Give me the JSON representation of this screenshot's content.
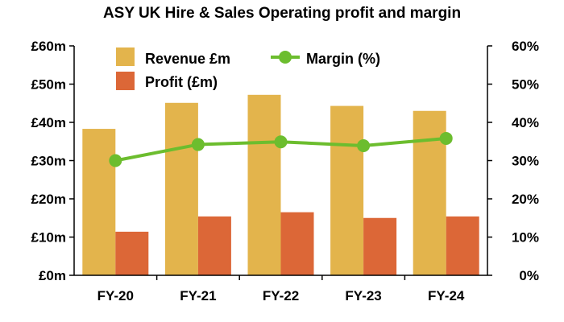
{
  "chart_data": {
    "type": "bar",
    "title": "ASY UK Hire & Sales Operating profit and margin",
    "categories": [
      "FY-20",
      "FY-21",
      "FY-22",
      "FY-23",
      "FY-24"
    ],
    "series": [
      {
        "name": "Revenue £m",
        "kind": "bar",
        "axis": "left",
        "color": "#E3B44C",
        "values": [
          38.3,
          45.1,
          47.2,
          44.3,
          43.0
        ]
      },
      {
        "name": "Profit (£m)",
        "kind": "bar",
        "axis": "left",
        "color": "#DC6737",
        "values": [
          11.4,
          15.4,
          16.5,
          15.0,
          15.4
        ]
      },
      {
        "name": "Margin (%)",
        "kind": "line",
        "axis": "right",
        "color": "#6CBD2E",
        "values": [
          30.0,
          34.2,
          34.9,
          33.9,
          35.8
        ]
      }
    ],
    "y_left": {
      "min": 0,
      "max": 60,
      "step": 10,
      "tick_labels": [
        "£0m",
        "£10m",
        "£20m",
        "£30m",
        "£40m",
        "£50m",
        "£60m"
      ]
    },
    "y_right": {
      "min": 0,
      "max": 60,
      "step": 10,
      "tick_labels": [
        "0%",
        "10%",
        "20%",
        "30%",
        "40%",
        "50%",
        "60%"
      ]
    },
    "grid": false,
    "legend_position": "top-left"
  }
}
